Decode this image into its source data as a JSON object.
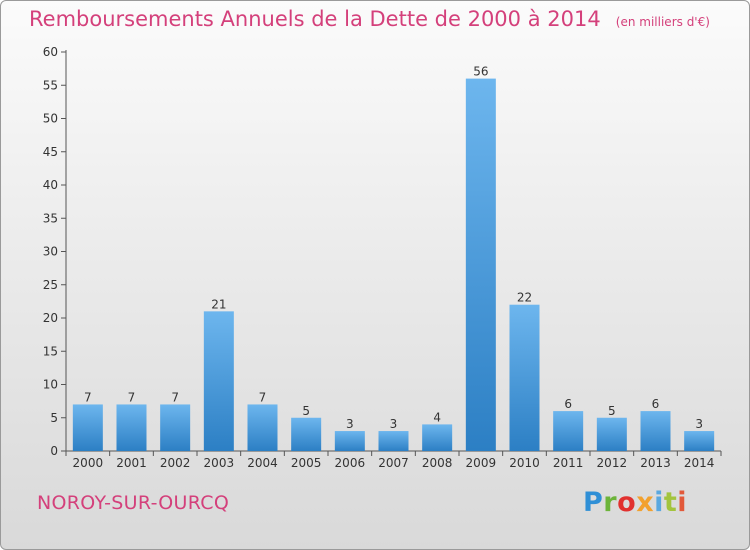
{
  "header": {
    "title": "Remboursements Annuels de la Dette de 2000 à 2014",
    "subtitle": "(en milliers d'€)"
  },
  "footer": {
    "commune": "NOROY-SUR-OURCQ",
    "brand": "Proxiti"
  },
  "colors": {
    "bar_light": "#6db6ee",
    "bar_dark": "#2c7fc4",
    "accent_text": "#d4407b"
  },
  "chart_data": {
    "type": "bar",
    "title": "Remboursements Annuels de la Dette de 2000 à 2014",
    "subtitle": "(en milliers d'€)",
    "xlabel": "",
    "ylabel": "",
    "categories": [
      "2000",
      "2001",
      "2002",
      "2003",
      "2004",
      "2005",
      "2006",
      "2007",
      "2008",
      "2009",
      "2010",
      "2011",
      "2012",
      "2013",
      "2014"
    ],
    "values": [
      7,
      7,
      7,
      21,
      7,
      5,
      3,
      3,
      4,
      56,
      22,
      6,
      5,
      6,
      3
    ],
    "data_labels": [
      "7",
      "7",
      "7",
      "21",
      "7",
      "5",
      "3",
      "3",
      "4",
      "56",
      "22",
      "6",
      "5",
      "6",
      "3"
    ],
    "ylim": [
      0,
      60
    ],
    "yticks": [
      0,
      5,
      10,
      15,
      20,
      25,
      30,
      35,
      40,
      45,
      50,
      55,
      60
    ],
    "ytick_labels": [
      "0",
      "5",
      "10",
      "15",
      "20",
      "25",
      "30",
      "35",
      "40",
      "45",
      "50",
      "55",
      "60"
    ],
    "grid": false,
    "legend": "none"
  }
}
